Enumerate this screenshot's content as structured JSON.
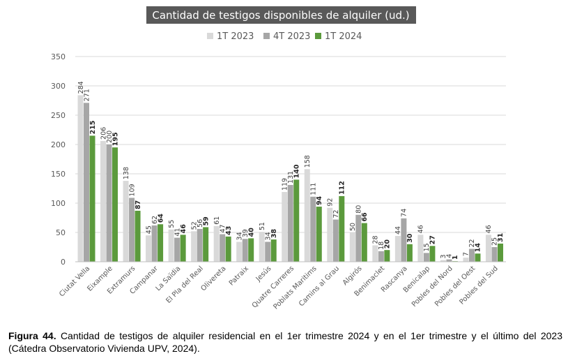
{
  "chart_data": {
    "type": "bar",
    "title": "Cantidad de testigos disponibles de alquiler (ud.)",
    "xlabel": "",
    "ylabel": "",
    "ylim": [
      0,
      350
    ],
    "yticks": [
      0,
      50,
      100,
      150,
      200,
      250,
      300,
      350
    ],
    "grid": true,
    "legend_position": "top",
    "categories": [
      "Ciutat Vella",
      "Eixample",
      "Extramurs",
      "Campanar",
      "La Saïdia",
      "El Pla del Real",
      "Olivereta",
      "Patraix",
      "Jesús",
      "Quatre Carreres",
      "Poblats Maritims",
      "Camins al Grau",
      "Algirós",
      "Benimaclet",
      "Rascanya",
      "Benicalap",
      "Pobles del Nord",
      "Pobles del Oest",
      "Pobles del Sud"
    ],
    "series": [
      {
        "name": "1T 2023",
        "color": "#d9d9d9",
        "values": [
          284,
          206,
          138,
          45,
          55,
          52,
          61,
          34,
          51,
          119,
          158,
          92,
          50,
          28,
          44,
          46,
          3,
          7,
          46
        ]
      },
      {
        "name": "4T 2023",
        "color": "#a6a6a6",
        "values": [
          271,
          200,
          109,
          62,
          41,
          56,
          47,
          39,
          34,
          131,
          111,
          72,
          80,
          18,
          74,
          15,
          4,
          22,
          25
        ]
      },
      {
        "name": "1T 2024",
        "color": "#5b9a3c",
        "values": [
          215,
          195,
          87,
          64,
          46,
          59,
          43,
          40,
          38,
          140,
          94,
          112,
          66,
          20,
          30,
          27,
          1,
          14,
          31
        ]
      }
    ]
  },
  "caption": {
    "label": "Figura 44.",
    "text": " Cantidad de testigos de alquiler residencial en el 1er trimestre 2024 y en el 1er trimestre y el último del 2023 (Cátedra Observatorio Vivienda UPV, 2024)."
  }
}
